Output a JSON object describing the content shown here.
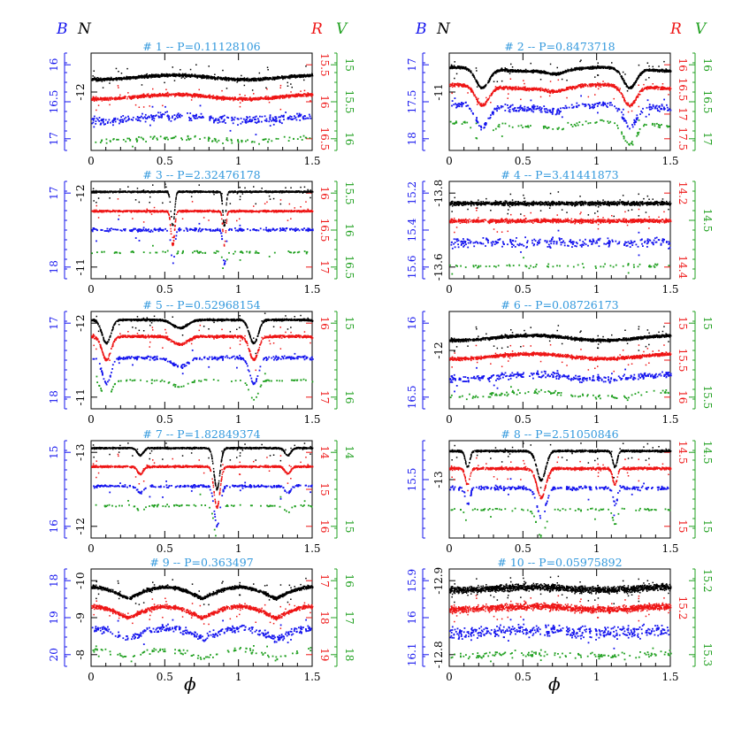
{
  "figure": {
    "band_labels": {
      "B": "B",
      "N": "N",
      "R": "R",
      "V": "V"
    },
    "xlabel": "ϕ",
    "colors": {
      "B": "#1515ee",
      "N": "#000000",
      "R": "#ee1515",
      "V": "#20a020",
      "title": "#3399dd"
    }
  },
  "chart_data": [
    {
      "type": "scatter",
      "id": 1,
      "title": "# 1 -- P=0.11128106",
      "xlim": [
        0,
        1.5
      ],
      "xticks": [
        "0",
        "0.5",
        "1",
        "1.5"
      ],
      "B_axis": {
        "ticks": [
          "16",
          "16.5",
          "17"
        ]
      },
      "N_axis": {
        "ticks": [
          "-12"
        ]
      },
      "R_axis": {
        "ticks": [
          "15.5",
          "16",
          "16.5"
        ]
      },
      "V_axis": {
        "ticks": [
          "15",
          "15.5",
          "16"
        ]
      },
      "series": [
        {
          "name": "N",
          "level": 0.22,
          "shape": "sin",
          "amp": 0.045,
          "spread": 0.022,
          "count": 1400
        },
        {
          "name": "R",
          "level": 0.42,
          "shape": "sin",
          "amp": 0.045,
          "spread": 0.025,
          "count": 1100
        },
        {
          "name": "B",
          "level": 0.64,
          "shape": "sin",
          "amp": 0.045,
          "spread": 0.06,
          "count": 320
        },
        {
          "name": "V",
          "level": 0.86,
          "shape": "sin",
          "amp": 0.04,
          "spread": 0.04,
          "count": 110
        }
      ]
    },
    {
      "type": "scatter",
      "id": 2,
      "title": "# 2 -- P=0.8473718",
      "xlim": [
        0,
        1.5
      ],
      "xticks": [
        "0",
        "0.5",
        "1",
        "1.5"
      ],
      "B_axis": {
        "ticks": [
          "17",
          "17.5",
          "18"
        ]
      },
      "N_axis": {
        "ticks": [
          "-11"
        ]
      },
      "R_axis": {
        "ticks": [
          "16",
          "16.5",
          "17",
          "17.5"
        ]
      },
      "V_axis": {
        "ticks": [
          "16",
          "16.5",
          "17"
        ]
      },
      "series": [
        {
          "name": "N",
          "level": 0.14,
          "shape": "ecl2",
          "amp": 0.2,
          "spread": 0.02,
          "count": 1300
        },
        {
          "name": "R",
          "level": 0.32,
          "shape": "ecl2",
          "amp": 0.2,
          "spread": 0.025,
          "count": 1000
        },
        {
          "name": "B",
          "level": 0.52,
          "shape": "ecl2",
          "amp": 0.22,
          "spread": 0.05,
          "count": 320
        },
        {
          "name": "V",
          "level": 0.7,
          "shape": "ecl2",
          "amp": 0.22,
          "spread": 0.04,
          "count": 110
        }
      ]
    },
    {
      "type": "scatter",
      "id": 3,
      "title": "# 3 -- P=2.32476178",
      "xlim": [
        0,
        1.5
      ],
      "xticks": [
        "0",
        "0.5",
        "1",
        "1.5"
      ],
      "B_axis": {
        "ticks": [
          "17",
          "18"
        ]
      },
      "N_axis": {
        "ticks": [
          "-12",
          "-11"
        ]
      },
      "R_axis": {
        "ticks": [
          "16",
          "16.5",
          "17"
        ]
      },
      "V_axis": {
        "ticks": [
          "15.5",
          "16",
          "16.5"
        ]
      },
      "series": [
        {
          "name": "N",
          "level": 0.1,
          "shape": "ecl3",
          "amp": 0.35,
          "spread": 0.012,
          "count": 1300
        },
        {
          "name": "R",
          "level": 0.3,
          "shape": "ecl3",
          "amp": 0.35,
          "spread": 0.015,
          "count": 1000
        },
        {
          "name": "B",
          "level": 0.49,
          "shape": "ecl3",
          "amp": 0.35,
          "spread": 0.025,
          "count": 260
        },
        {
          "name": "V",
          "level": 0.72,
          "shape": "ecl3",
          "amp": 0.3,
          "spread": 0.02,
          "count": 80
        }
      ]
    },
    {
      "type": "scatter",
      "id": 4,
      "title": "# 4 -- P=3.41441873",
      "xlim": [
        0,
        1.5
      ],
      "xticks": [
        "0",
        "0.5",
        "1",
        "1.5"
      ],
      "B_axis": {
        "ticks": [
          "15.2",
          "15.4",
          "15.6"
        ]
      },
      "N_axis": {
        "ticks": [
          "-13.8",
          "-13.6"
        ]
      },
      "R_axis": {
        "ticks": [
          "14.2",
          "14.4"
        ]
      },
      "V_axis": {
        "ticks": [
          "14.5"
        ]
      },
      "series": [
        {
          "name": "N",
          "level": 0.22,
          "shape": "flat",
          "amp": 0.02,
          "spread": 0.03,
          "count": 1300
        },
        {
          "name": "R",
          "level": 0.4,
          "shape": "flat",
          "amp": 0.02,
          "spread": 0.03,
          "count": 1000
        },
        {
          "name": "B",
          "level": 0.62,
          "shape": "flat",
          "amp": 0.02,
          "spread": 0.07,
          "count": 280
        },
        {
          "name": "V",
          "level": 0.86,
          "shape": "flat",
          "amp": 0.02,
          "spread": 0.03,
          "count": 70
        }
      ]
    },
    {
      "type": "scatter",
      "id": 5,
      "title": "# 5 -- P=0.52968154",
      "xlim": [
        0,
        1.5
      ],
      "xticks": [
        "0",
        "0.5",
        "1",
        "1.5"
      ],
      "B_axis": {
        "ticks": [
          "17",
          "18"
        ]
      },
      "N_axis": {
        "ticks": [
          "-12",
          "-11"
        ]
      },
      "R_axis": {
        "ticks": [
          "16",
          "17"
        ]
      },
      "V_axis": {
        "ticks": [
          "15",
          "16"
        ]
      },
      "series": [
        {
          "name": "N",
          "level": 0.08,
          "shape": "ecl5",
          "amp": 0.24,
          "spread": 0.015,
          "count": 1300
        },
        {
          "name": "R",
          "level": 0.25,
          "shape": "ecl5",
          "amp": 0.24,
          "spread": 0.02,
          "count": 1000
        },
        {
          "name": "B",
          "level": 0.47,
          "shape": "ecl5",
          "amp": 0.26,
          "spread": 0.03,
          "count": 300
        },
        {
          "name": "V",
          "level": 0.7,
          "shape": "ecl5",
          "amp": 0.2,
          "spread": 0.015,
          "count": 90
        }
      ]
    },
    {
      "type": "scatter",
      "id": 6,
      "title": "# 6 -- P=0.08726173",
      "xlim": [
        0,
        1.5
      ],
      "xticks": [
        "0",
        "0.5",
        "1",
        "1.5"
      ],
      "B_axis": {
        "ticks": [
          "16",
          "16.5"
        ]
      },
      "N_axis": {
        "ticks": [
          "-12"
        ]
      },
      "R_axis": {
        "ticks": [
          "15",
          "15.5",
          "16"
        ]
      },
      "V_axis": {
        "ticks": [
          "15",
          "15.5"
        ]
      },
      "series": [
        {
          "name": "N",
          "level": 0.24,
          "shape": "sin",
          "amp": 0.05,
          "spread": 0.022,
          "count": 1400
        },
        {
          "name": "R",
          "level": 0.43,
          "shape": "sin",
          "amp": 0.05,
          "spread": 0.025,
          "count": 1100
        },
        {
          "name": "B",
          "level": 0.64,
          "shape": "sin",
          "amp": 0.05,
          "spread": 0.05,
          "count": 320
        },
        {
          "name": "V",
          "level": 0.82,
          "shape": "sin",
          "amp": 0.05,
          "spread": 0.04,
          "count": 110
        }
      ]
    },
    {
      "type": "scatter",
      "id": 7,
      "title": "# 7 -- P=1.82849374",
      "xlim": [
        0,
        1.5
      ],
      "xticks": [
        "0",
        "0.5",
        "1",
        "1.5"
      ],
      "B_axis": {
        "ticks": [
          "15",
          "16"
        ]
      },
      "N_axis": {
        "ticks": [
          "-13",
          "-12"
        ]
      },
      "R_axis": {
        "ticks": [
          "14",
          "15",
          "16"
        ]
      },
      "V_axis": {
        "ticks": [
          "14",
          "15"
        ]
      },
      "series": [
        {
          "name": "N",
          "level": 0.07,
          "shape": "ecl7",
          "amp": 0.42,
          "spread": 0.012,
          "count": 1200
        },
        {
          "name": "R",
          "level": 0.26,
          "shape": "ecl7",
          "amp": 0.42,
          "spread": 0.015,
          "count": 1000
        },
        {
          "name": "B",
          "level": 0.46,
          "shape": "ecl7",
          "amp": 0.4,
          "spread": 0.02,
          "count": 280
        },
        {
          "name": "V",
          "level": 0.66,
          "shape": "ecl7",
          "amp": 0.35,
          "spread": 0.015,
          "count": 90
        }
      ]
    },
    {
      "type": "scatter",
      "id": 8,
      "title": "# 8 -- P=2.51050846",
      "xlim": [
        0,
        1.5
      ],
      "xticks": [
        "0",
        "0.5",
        "1",
        "1.5"
      ],
      "B_axis": {
        "ticks": [
          "15.5"
        ]
      },
      "N_axis": {
        "ticks": [
          "-13"
        ]
      },
      "R_axis": {
        "ticks": [
          "14.5",
          "15"
        ]
      },
      "V_axis": {
        "ticks": [
          "14.5",
          "15"
        ]
      },
      "series": [
        {
          "name": "N",
          "level": 0.1,
          "shape": "ecl8",
          "amp": 0.3,
          "spread": 0.015,
          "count": 1200
        },
        {
          "name": "R",
          "level": 0.28,
          "shape": "ecl8",
          "amp": 0.3,
          "spread": 0.02,
          "count": 1000
        },
        {
          "name": "B",
          "level": 0.48,
          "shape": "ecl8",
          "amp": 0.3,
          "spread": 0.03,
          "count": 280
        },
        {
          "name": "V",
          "level": 0.7,
          "shape": "ecl8",
          "amp": 0.28,
          "spread": 0.02,
          "count": 90
        }
      ]
    },
    {
      "type": "scatter",
      "id": 9,
      "title": "# 9 -- P=0.363497",
      "xlim": [
        0,
        1.5
      ],
      "xticks": [
        "0",
        "0.5",
        "1",
        "1.5"
      ],
      "B_axis": {
        "ticks": [
          "18",
          "19",
          "20"
        ]
      },
      "N_axis": {
        "ticks": [
          "-10",
          "-9",
          "-8"
        ]
      },
      "R_axis": {
        "ticks": [
          "17",
          "18",
          "19"
        ]
      },
      "V_axis": {
        "ticks": [
          "16",
          "17",
          "18"
        ]
      },
      "series": [
        {
          "name": "N",
          "level": 0.18,
          "shape": "ew",
          "amp": 0.12,
          "spread": 0.025,
          "count": 1300
        },
        {
          "name": "R",
          "level": 0.38,
          "shape": "ew",
          "amp": 0.12,
          "spread": 0.03,
          "count": 1100
        },
        {
          "name": "B",
          "level": 0.6,
          "shape": "ew",
          "amp": 0.12,
          "spread": 0.06,
          "count": 340
        },
        {
          "name": "V",
          "level": 0.82,
          "shape": "ew",
          "amp": 0.1,
          "spread": 0.04,
          "count": 110
        }
      ]
    },
    {
      "type": "scatter",
      "id": 10,
      "title": "# 10 -- P=0.05975892",
      "xlim": [
        0,
        1.5
      ],
      "xticks": [
        "0",
        "0.5",
        "1",
        "1.5"
      ],
      "B_axis": {
        "ticks": [
          "15.9",
          "16",
          "16.1"
        ]
      },
      "N_axis": {
        "ticks": [
          "-12.9",
          "-12.8"
        ]
      },
      "R_axis": {
        "ticks": [
          "15.2"
        ]
      },
      "V_axis": {
        "ticks": [
          "15.2",
          "15.3"
        ]
      },
      "series": [
        {
          "name": "N",
          "level": 0.18,
          "shape": "sin",
          "amp": 0.03,
          "spread": 0.05,
          "count": 1600
        },
        {
          "name": "R",
          "level": 0.38,
          "shape": "sin",
          "amp": 0.03,
          "spread": 0.05,
          "count": 1300
        },
        {
          "name": "B",
          "level": 0.62,
          "shape": "sin",
          "amp": 0.03,
          "spread": 0.09,
          "count": 400
        },
        {
          "name": "V",
          "level": 0.86,
          "shape": "sin",
          "amp": 0.03,
          "spread": 0.06,
          "count": 130
        }
      ]
    }
  ]
}
